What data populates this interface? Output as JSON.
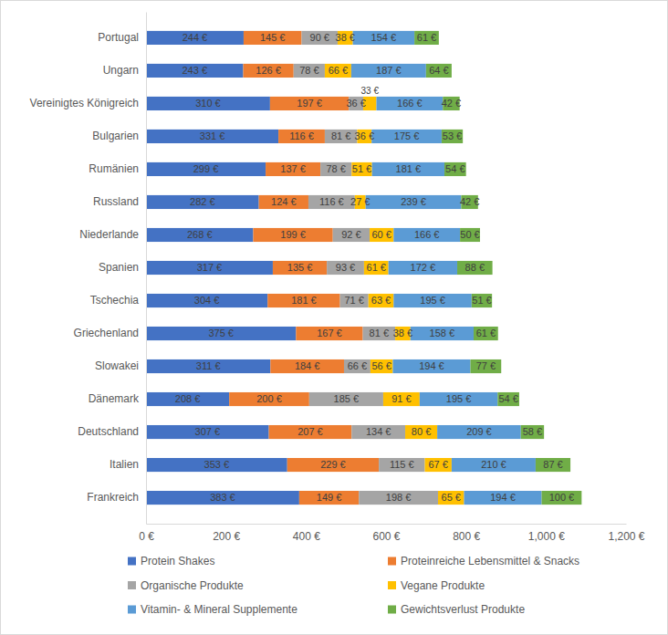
{
  "chart_data": {
    "type": "bar",
    "orientation": "horizontal",
    "stacked": true,
    "data_labels": true,
    "grid": false,
    "legend": "bottom",
    "categories": [
      "Portugal",
      "Ungarn",
      "Vereinigtes Königreich",
      "Bulgarien",
      "Rumänien",
      "Russland",
      "Niederlande",
      "Spanien",
      "Tschechia",
      "Griechenland",
      "Slowakei",
      "Dänemark",
      "Deutschland",
      "Italien",
      "Frankreich"
    ],
    "xlim": [
      0,
      1200
    ],
    "xticks": [
      {
        "value": 0,
        "label": "0 €"
      },
      {
        "value": 200,
        "label": "200 €"
      },
      {
        "value": 400,
        "label": "400 €"
      },
      {
        "value": 600,
        "label": "600 €"
      },
      {
        "value": 800,
        "label": "800 €"
      },
      {
        "value": 1000,
        "label": "1,000 €"
      },
      {
        "value": 1200,
        "label": "1,200 €"
      }
    ],
    "series": [
      {
        "name": "Protein Shakes",
        "color": "#4472c4",
        "values": [
          244,
          243,
          310,
          331,
          299,
          282,
          268,
          317,
          304,
          375,
          311,
          208,
          307,
          353,
          383
        ],
        "value_labels": [
          "244 €",
          "243 €",
          "310 €",
          "331 €",
          "299 €",
          "282 €",
          "268 €",
          "317 €",
          "304 €",
          "375 €",
          "311 €",
          "208 €",
          "307 €",
          "353 €",
          "383 €"
        ]
      },
      {
        "name": "Proteinreiche Lebensmittel & Snacks",
        "color": "#ed7d31",
        "values": [
          145,
          126,
          197,
          116,
          137,
          124,
          199,
          135,
          181,
          167,
          184,
          200,
          207,
          229,
          149
        ],
        "value_labels": [
          "145 €",
          "126 €",
          "197 €",
          "116 €",
          "137 €",
          "124 €",
          "199 €",
          "135 €",
          "181 €",
          "167 €",
          "184 €",
          "200 €",
          "207 €",
          "229 €",
          "149 €"
        ]
      },
      {
        "name": "Organische Produkte",
        "color": "#a5a5a5",
        "values": [
          90,
          78,
          36,
          81,
          78,
          116,
          92,
          93,
          71,
          81,
          66,
          185,
          134,
          115,
          198
        ],
        "value_labels": [
          "90 €",
          "78 €",
          "36 €",
          "81 €",
          "78 €",
          "116 €",
          "92 €",
          "93 €",
          "71 €",
          "81 €",
          "66 €",
          "185 €",
          "134 €",
          "115 €",
          "198 €"
        ]
      },
      {
        "name": "Vegane Produkte",
        "color": "#ffc000",
        "values": [
          38,
          66,
          33,
          36,
          51,
          27,
          60,
          61,
          63,
          38,
          56,
          91,
          80,
          67,
          65
        ],
        "value_labels": [
          "38 €",
          "66 €",
          "33 €",
          "36 €",
          "51 €",
          "27 €",
          "60 €",
          "61 €",
          "63 €",
          "38 €",
          "56 €",
          "91 €",
          "80 €",
          "67 €",
          "65 €"
        ]
      },
      {
        "name": "Vitamin- & Mineral Supplemente",
        "color": "#5b9bd5",
        "values": [
          154,
          187,
          166,
          175,
          181,
          239,
          166,
          172,
          195,
          158,
          194,
          195,
          209,
          210,
          194
        ],
        "value_labels": [
          "154 €",
          "187 €",
          "166 €",
          "175 €",
          "181 €",
          "239 €",
          "166 €",
          "172 €",
          "195 €",
          "158 €",
          "194 €",
          "195 €",
          "209 €",
          "210 €",
          "194 €"
        ]
      },
      {
        "name": "Gewichtsverlust Produkte",
        "color": "#70ad47",
        "values": [
          61,
          64,
          42,
          53,
          54,
          42,
          50,
          88,
          51,
          61,
          77,
          54,
          58,
          87,
          100
        ],
        "value_labels": [
          "61 €",
          "64 €",
          "42 €",
          "53 €",
          "54 €",
          "42 €",
          "50 €",
          "88 €",
          "51 €",
          "61 €",
          "77 €",
          "54 €",
          "58 €",
          "87 €",
          "100 €"
        ]
      }
    ]
  }
}
